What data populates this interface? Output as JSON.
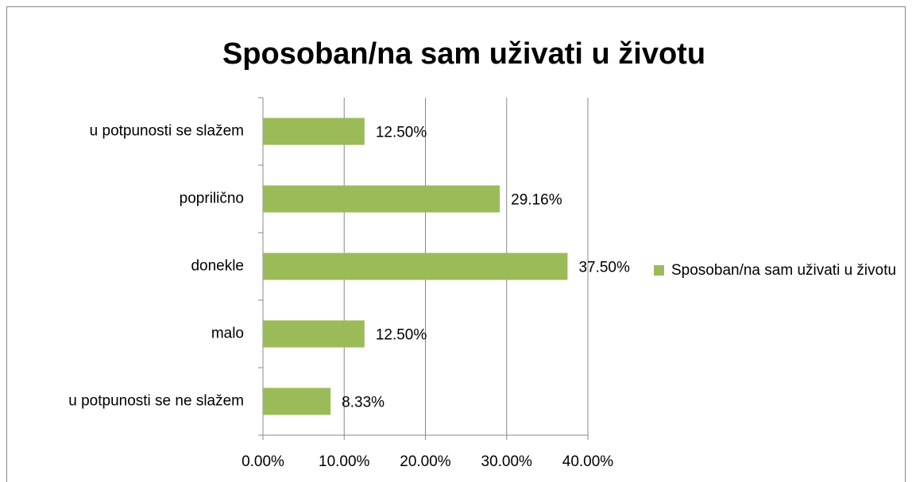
{
  "chart_data": {
    "type": "bar",
    "orientation": "horizontal",
    "title": "Sposoban/na sam uživati u životu",
    "categories": [
      "u potpunosti se slažem",
      "popriličnо",
      "donekle",
      "malo",
      "u potpunosti se ne slažem"
    ],
    "series": [
      {
        "name": "Sposoban/na sam uživati u životu",
        "color": "#9bbb59",
        "values": [
          12.5,
          29.16,
          37.5,
          12.5,
          8.33
        ],
        "value_labels": [
          "12.50%",
          "29.16%",
          "37.50%",
          "12.50%",
          "8.33%"
        ]
      }
    ],
    "xlim": [
      0,
      40
    ],
    "xticks": [
      {
        "value": 0,
        "label": "0.00%"
      },
      {
        "value": 10,
        "label": "10.00%"
      },
      {
        "value": 20,
        "label": "20.00%"
      },
      {
        "value": 30,
        "label": "30.00%"
      },
      {
        "value": 40,
        "label": "40.00%"
      }
    ],
    "grid": true,
    "legend": "right"
  }
}
